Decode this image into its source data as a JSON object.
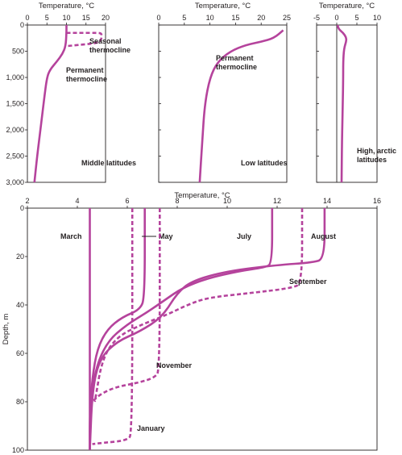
{
  "colors": {
    "curve": "#b5439c",
    "axis": "#231f20",
    "background": "#ffffff"
  },
  "chart_data": [
    {
      "type": "line",
      "panel": "middle-latitudes",
      "title": "Middle latitudes",
      "xlabel": "Temperature, °C",
      "ylabel": "",
      "x_ticks": [
        0,
        5,
        10,
        15,
        20
      ],
      "x_tick_labels": [
        "0",
        "5",
        "10",
        "15",
        "20"
      ],
      "y_ticks": [
        0,
        500,
        1000,
        1500,
        2000,
        2500,
        3000
      ],
      "y_tick_labels": [
        "0",
        "500",
        "1,000",
        "1,500",
        "2,000",
        "2,500",
        "3,000"
      ],
      "xlim": [
        0,
        20
      ],
      "ylim": [
        0,
        3000
      ],
      "y_inverted": true,
      "x_axis_position": "top",
      "series": [
        {
          "style": "solid",
          "x": [
            10,
            10,
            9.8,
            9,
            7.5,
            5.8,
            5,
            4.3,
            3.5,
            2.5,
            1.8
          ],
          "y": [
            0,
            150,
            400,
            550,
            700,
            850,
            1000,
            1400,
            1900,
            2500,
            3000
          ]
        },
        {
          "style": "dashed",
          "x": [
            10,
            14,
            18,
            19,
            19,
            18.5,
            16,
            13,
            10.5,
            10
          ],
          "y": [
            150,
            150,
            150,
            160,
            250,
            330,
            360,
            380,
            400,
            400
          ]
        }
      ],
      "annotations": [
        {
          "text": "Seasonal\nthermocline"
        },
        {
          "text": "Permanent\nthermocline"
        },
        {
          "text": "Middle latitudes"
        }
      ]
    },
    {
      "type": "line",
      "panel": "low-latitudes",
      "title": "Low latitudes",
      "xlabel": "Temperature, °C",
      "x_ticks": [
        0,
        5,
        10,
        15,
        20,
        25
      ],
      "x_tick_labels": [
        "0",
        "5",
        "10",
        "15",
        "20",
        "25"
      ],
      "xlim": [
        0,
        25
      ],
      "ylim": [
        0,
        3000
      ],
      "y_inverted": true,
      "x_axis_position": "top",
      "series": [
        {
          "style": "solid",
          "x": [
            24.3,
            22.5,
            20,
            17,
            14,
            11.5,
            10,
            9,
            8.5,
            8
          ],
          "y": [
            100,
            250,
            320,
            380,
            500,
            700,
            1000,
            1500,
            2200,
            3000
          ]
        }
      ],
      "annotations": [
        {
          "text": "Permanent\nthermocline"
        },
        {
          "text": "Low latitudes"
        }
      ]
    },
    {
      "type": "line",
      "panel": "high-arctic-latitudes",
      "title": "High, arctic latitudes",
      "xlabel": "Temperature, °C",
      "x_ticks": [
        -5,
        0,
        5,
        10
      ],
      "x_tick_labels": [
        "-5",
        "0",
        "5",
        "10"
      ],
      "xlim": [
        -5,
        10
      ],
      "ylim": [
        0,
        3000
      ],
      "y_inverted": true,
      "x_axis_position": "top",
      "vertical_reference_x": 0,
      "series": [
        {
          "style": "solid",
          "x": [
            0.2,
            0.5,
            1.6,
            2.3,
            2.4,
            1.8,
            1.6,
            1.6,
            1.5,
            1.3,
            1.2
          ],
          "y": [
            0,
            80,
            150,
            230,
            300,
            450,
            700,
            1000,
            1500,
            2200,
            3000
          ]
        }
      ],
      "annotations": [
        {
          "text": "High, arctic\nlatitudes"
        }
      ]
    },
    {
      "type": "line",
      "panel": "seasonal",
      "xlabel": "Temperature, °C",
      "ylabel": "Depth, m",
      "x_ticks": [
        2,
        4,
        6,
        8,
        10,
        12,
        14,
        16
      ],
      "x_tick_labels": [
        "2",
        "4",
        "6",
        "8",
        "10",
        "12",
        "14",
        "16"
      ],
      "y_ticks": [
        0,
        20,
        40,
        60,
        80,
        100
      ],
      "y_tick_labels": [
        "0",
        "20",
        "40",
        "60",
        "80",
        "100"
      ],
      "xlim": [
        2,
        16
      ],
      "ylim": [
        0,
        100
      ],
      "y_inverted": true,
      "x_axis_position": "top",
      "series": [
        {
          "name": "March",
          "style": "solid",
          "x": [
            4.5,
            4.5
          ],
          "y": [
            0,
            100
          ]
        },
        {
          "name": "May",
          "style": "solid",
          "x": [
            6.7,
            6.7,
            6.5,
            5.8,
            5.2,
            4.8,
            4.6,
            4.5,
            4.5
          ],
          "y": [
            0,
            37,
            42,
            45,
            50,
            58,
            70,
            85,
            100
          ]
        },
        {
          "name": "July",
          "style": "solid",
          "x": [
            11.8,
            11.8,
            11.5,
            10.5,
            9.2,
            8.2,
            7.5,
            6.8,
            6,
            5.2,
            4.7,
            4.5,
            4.5
          ],
          "y": [
            0,
            23,
            24.5,
            26,
            29,
            33,
            38,
            43,
            48,
            55,
            67,
            85,
            100
          ]
        },
        {
          "name": "August",
          "style": "solid",
          "x": [
            13.9,
            13.9,
            13.4,
            12,
            10,
            8.6,
            8,
            7.4,
            6.5,
            5.6,
            4.9,
            4.6,
            4.5
          ],
          "y": [
            0,
            21,
            22.5,
            23.5,
            26,
            30,
            35,
            45,
            51,
            55,
            62,
            75,
            100
          ]
        },
        {
          "name": "September",
          "style": "dashed",
          "x": [
            13,
            13,
            12.6,
            11,
            9.2,
            8.4,
            7.6,
            6.6,
            5.6,
            5,
            4.7
          ],
          "y": [
            0,
            31,
            33,
            35,
            37,
            40,
            44,
            48,
            53,
            62,
            80
          ]
        },
        {
          "name": "November",
          "style": "dashed",
          "x": [
            7.3,
            7.3,
            7.1,
            6.5,
            5.5,
            4.9,
            4.6
          ],
          "y": [
            0,
            67,
            70,
            72,
            74,
            77,
            80
          ]
        },
        {
          "name": "January",
          "style": "dashed",
          "x": [
            6.2,
            6.2,
            6,
            5,
            4.6
          ],
          "y": [
            0,
            93,
            96,
            97,
            97.5
          ]
        }
      ]
    }
  ]
}
